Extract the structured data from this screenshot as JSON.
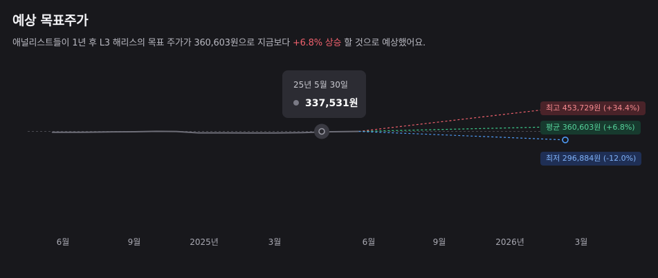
{
  "header": {
    "title": "예상 목표주가",
    "subtitle_pre": "애널리스트들이 1년 후 L3 해리스의 목표 주가가 360,603원으로 지금보다 ",
    "subtitle_highlight": "+6.8% 상승",
    "subtitle_post": " 할 것으로 예상했어요."
  },
  "tooltip": {
    "date": "25년 5월 30일",
    "value": "337,531원"
  },
  "targets": {
    "high": {
      "label": "최고 453,729원 (+34.4%)",
      "value": 453729,
      "color": "#f0616d"
    },
    "avg": {
      "label": "평균 360,603원 (+6.8%)",
      "value": 360603,
      "color": "#3ecf8e"
    },
    "low": {
      "label": "최저 296,884원 (-12.0%)",
      "value": 296884,
      "color": "#4f9cf7"
    }
  },
  "chart_data": {
    "type": "line",
    "x_ticks": [
      "6월",
      "9월",
      "2025년",
      "3월",
      "6월",
      "9월",
      "2026년",
      "3월"
    ],
    "series": [
      {
        "values": [
          [
            "2024-05-30",
            333500
          ],
          [
            "2024-06-15",
            333500
          ],
          [
            "2024-07-01",
            333700
          ],
          [
            "2024-07-20",
            334200
          ],
          [
            "2024-08-10",
            335500
          ],
          [
            "2024-09-05",
            336000
          ],
          [
            "2024-10-01",
            337700
          ],
          [
            "2024-10-25",
            337300
          ],
          [
            "2024-11-20",
            330500
          ],
          [
            "2024-12-20",
            330700
          ],
          [
            "2025-01-20",
            329900
          ],
          [
            "2025-02-20",
            330300
          ],
          [
            "2025-03-25",
            331800
          ],
          [
            "2025-04-20",
            335400
          ],
          [
            "2025-05-30",
            337531
          ]
        ]
      }
    ],
    "current_price": 337531,
    "current_date": "2025-05-30",
    "forecast_date": "2026-01-31",
    "forecasts": [
      {
        "value": 453729
      },
      {
        "value": 360603
      },
      {
        "value": 296884
      }
    ],
    "colors": {
      "history": "#6e6e78",
      "high": "#f0616d",
      "avg": "#3ecf8e",
      "low": "#4f9cf7"
    }
  }
}
